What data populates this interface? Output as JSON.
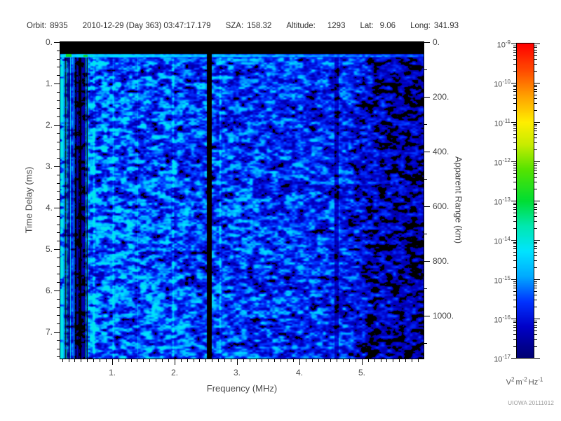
{
  "header": {
    "fields": [
      {
        "label": "Orbit:",
        "value": "8935"
      },
      {
        "label": "",
        "value": "2010-12-29 (Day 363) 03:47:17.179"
      },
      {
        "label": "SZA:",
        "value": "158.32"
      },
      {
        "label": "Altitude:",
        "value": "1293"
      },
      {
        "label": "Lat:",
        "value": "9.06"
      },
      {
        "label": "Long:",
        "value": "341.93"
      }
    ]
  },
  "footer": {
    "credit": "UIOWA 20111012"
  },
  "chart_data": {
    "type": "heatmap",
    "title": "",
    "xlabel": "Frequency (MHz)",
    "ylabel_left": "Time Delay (ms)",
    "ylabel_right": "Apparent Range (km)",
    "x_axis": {
      "unit": "MHz",
      "range": [
        0.17,
        5.99
      ],
      "major_ticks": [
        {
          "v": 1,
          "label": "1."
        },
        {
          "v": 2,
          "label": "2."
        },
        {
          "v": 3,
          "label": "3."
        },
        {
          "v": 4,
          "label": "4."
        },
        {
          "v": 5,
          "label": "5."
        }
      ],
      "minor_step": 0.1
    },
    "y_axis_left": {
      "unit": "ms",
      "range": [
        0,
        7.65
      ],
      "major_ticks": [
        {
          "v": 0,
          "label": "0."
        },
        {
          "v": 1,
          "label": "1."
        },
        {
          "v": 2,
          "label": "2."
        },
        {
          "v": 3,
          "label": "3."
        },
        {
          "v": 4,
          "label": "4."
        },
        {
          "v": 5,
          "label": "5."
        },
        {
          "v": 6,
          "label": "6."
        },
        {
          "v": 7,
          "label": "7."
        }
      ],
      "minor_step": 0.2
    },
    "y_axis_right": {
      "unit": "km",
      "range": [
        0,
        1156
      ],
      "major_ticks": [
        {
          "v": 0,
          "label": "0."
        },
        {
          "v": 200,
          "label": "200."
        },
        {
          "v": 400,
          "label": "400."
        },
        {
          "v": 600,
          "label": "600."
        },
        {
          "v": 800,
          "label": "800."
        },
        {
          "v": 1000,
          "label": "1000."
        }
      ],
      "minor_step": 100
    },
    "colorbar": {
      "scale": "log10",
      "range": [
        1e-17,
        1e-09
      ],
      "tick_exponents": [
        -9,
        -10,
        -11,
        -12,
        -13,
        -14,
        -15,
        -16,
        -17
      ],
      "unit_segments": [
        {
          "base": "V",
          "sup": "2"
        },
        {
          "base": "m",
          "sup": "-2"
        },
        {
          "base": "Hz",
          "sup": "-1"
        }
      ],
      "colormap_stops": [
        {
          "t": 0.0,
          "c": "#000070"
        },
        {
          "t": 0.1,
          "c": "#0000c8"
        },
        {
          "t": 0.18,
          "c": "#0033ff"
        },
        {
          "t": 0.26,
          "c": "#00aaff"
        },
        {
          "t": 0.34,
          "c": "#00e4ff"
        },
        {
          "t": 0.42,
          "c": "#00e8b0"
        },
        {
          "t": 0.5,
          "c": "#00dd33"
        },
        {
          "t": 0.6,
          "c": "#55e300"
        },
        {
          "t": 0.68,
          "c": "#c8ec00"
        },
        {
          "t": 0.75,
          "c": "#ffee00"
        },
        {
          "t": 0.83,
          "c": "#ffa500"
        },
        {
          "t": 0.91,
          "c": "#ff5000"
        },
        {
          "t": 1.0,
          "c": "#ff0000"
        }
      ],
      "below_min_color": "#000000"
    },
    "plot_background": "#000000",
    "features": [
      "black no-signal band from 0 to ~0.28 ms across all frequencies",
      "bright cyan horizontal stripe near 0.3 ms, strongest below ~2.5 MHz, with small green patches near 0.25 and 0.55 MHz",
      "dense vertical striping of alternating bright cyan and black columns below ~0.6 MHz",
      "narrow black vertical gap (no signal) near 2.35 MHz spanning full time-delay range",
      "diffuse blue noise around 1e-16 to 1e-15 V^2 m^-2 Hz^-1 between ~0.6 and ~4.8 MHz, slowly dimming toward higher frequencies",
      "signal breaks into isolated blue blobs on black background above ~4.8 MHz",
      "faint brighter vertical line near 2.5 MHz and dim seam near 4.6 MHz"
    ]
  }
}
